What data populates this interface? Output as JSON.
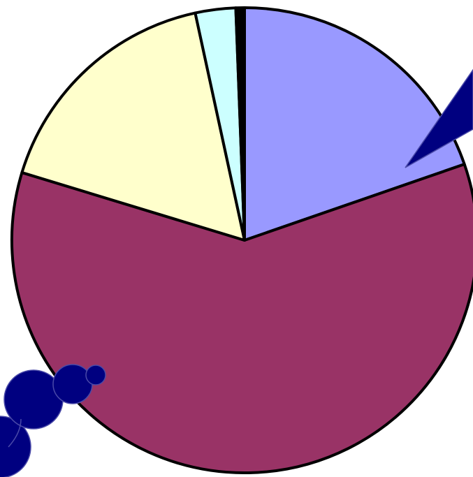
{
  "chart_data": {
    "type": "pie",
    "title": "",
    "start_angle_deg": -90,
    "direction": "clockwise",
    "slices": [
      {
        "value": 19.7,
        "color": "#9999ff",
        "label": ""
      },
      {
        "value": 60.0,
        "color": "#993366",
        "label": ""
      },
      {
        "value": 16.9,
        "color": "#ffffcc",
        "label": ""
      },
      {
        "value": 2.8,
        "color": "#ccffff",
        "label": ""
      },
      {
        "value": 0.6,
        "color": "#000000",
        "label": ""
      }
    ],
    "slice_outline_color": "#000000",
    "legend": "none",
    "callouts": [
      {
        "shape": "wedge-pointer",
        "color": "#000080",
        "target_slice": 0
      },
      {
        "shape": "thought-bubbles",
        "color": "#000080",
        "target_slice": 1
      }
    ]
  }
}
